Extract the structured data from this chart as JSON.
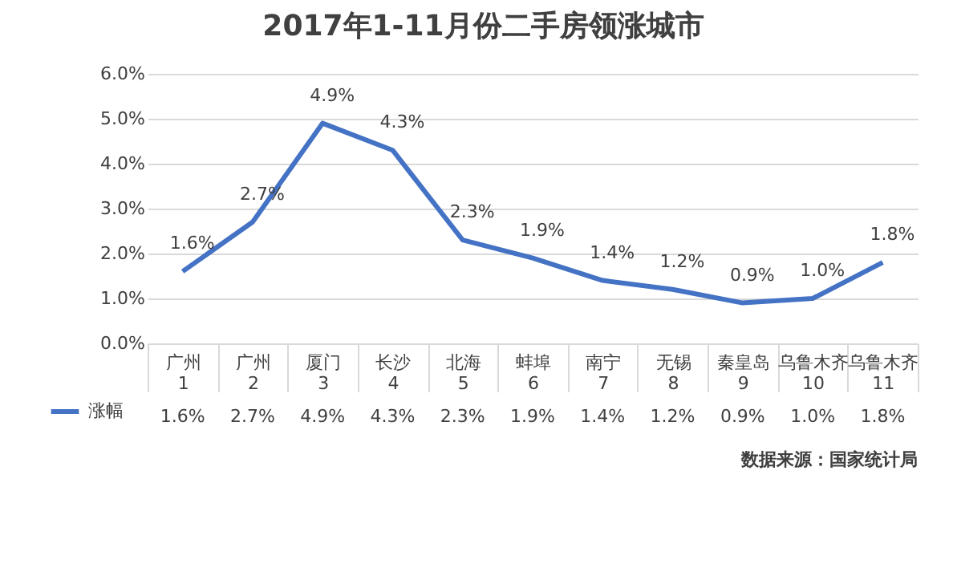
{
  "chart_data": {
    "type": "line",
    "title": "2017年1-11月份二手房领涨城市",
    "categories": [
      "广州\n1",
      "广州\n2",
      "厦门\n3",
      "长沙\n4",
      "北海\n5",
      "蚌埠\n6",
      "南宁\n7",
      "无锡\n8",
      "秦皇岛\n9",
      "乌鲁木齐\n10",
      "乌鲁木齐\n11"
    ],
    "series": [
      {
        "name": "涨幅",
        "color": "#4472c4",
        "values": [
          1.6,
          2.7,
          4.9,
          4.3,
          2.3,
          1.9,
          1.4,
          1.2,
          0.9,
          1.0,
          1.8
        ],
        "value_labels": [
          "1.6%",
          "2.7%",
          "4.9%",
          "4.3%",
          "2.3%",
          "1.9%",
          "1.4%",
          "1.2%",
          "0.9%",
          "1.0%",
          "1.8%"
        ]
      }
    ],
    "ylim": [
      0,
      6
    ],
    "yticks": [
      {
        "value": 0,
        "label": "0.0%"
      },
      {
        "value": 1,
        "label": "1.0%"
      },
      {
        "value": 2,
        "label": "2.0%"
      },
      {
        "value": 3,
        "label": "3.0%"
      },
      {
        "value": 4,
        "label": "4.0%"
      },
      {
        "value": 5,
        "label": "5.0%"
      },
      {
        "value": 6,
        "label": "6.0%"
      }
    ],
    "grid": "y",
    "legend": "bottom left",
    "marker": "none",
    "line_style": "solid",
    "annotations": [
      "数据来源：国家统计局"
    ]
  }
}
